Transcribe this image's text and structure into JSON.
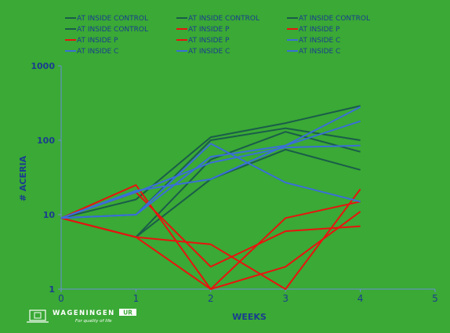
{
  "chart_data": {
    "type": "line",
    "title": "",
    "xlabel": "WEEKS",
    "ylabel": "# ACERIA",
    "yscale": "log",
    "xlim": [
      0,
      5
    ],
    "ylim": [
      1,
      1000
    ],
    "x_ticks": [
      "0",
      "1",
      "2",
      "3",
      "4",
      "5"
    ],
    "y_ticks": [
      "1",
      "10",
      "100",
      "1000"
    ],
    "grid": false,
    "legend_position": "top",
    "x": [
      0,
      1,
      2,
      3,
      4
    ],
    "series": [
      {
        "name": "AT INSIDE CONTROL",
        "color": "#1a5d4a",
        "values": [
          9,
          16,
          110,
          170,
          290
        ]
      },
      {
        "name": "AT INSIDE CONTROL",
        "color": "#1a5d4a",
        "values": [
          9,
          5,
          30,
          75,
          40
        ]
      },
      {
        "name": "AT INSIDE CONTROL",
        "color": "#1a5d4a",
        "values": [
          9,
          10,
          100,
          145,
          100
        ]
      },
      {
        "name": "AT INSIDE CONTROL",
        "color": "#1a5d4a",
        "values": [
          9,
          5,
          55,
          130,
          70
        ]
      },
      {
        "name": "AT INSIDE  P",
        "color": "#e8140f",
        "values": [
          9,
          25,
          1,
          9,
          15
        ]
      },
      {
        "name": "AT INSIDE  P",
        "color": "#e8140f",
        "values": [
          9,
          5,
          4,
          1,
          22
        ]
      },
      {
        "name": "AT INSIDE  P",
        "color": "#e8140f",
        "values": [
          9,
          5,
          1,
          2,
          11
        ]
      },
      {
        "name": "AT INSIDE  P",
        "color": "#e8140f",
        "values": [
          9,
          20,
          2,
          6,
          7
        ]
      },
      {
        "name": "AT INSIDE  C",
        "color": "#3a6fd8",
        "values": [
          9,
          10,
          90,
          27,
          15
        ]
      },
      {
        "name": "AT INSIDE  C",
        "color": "#3a6fd8",
        "values": [
          9,
          21,
          30,
          85,
          180
        ]
      },
      {
        "name": "AT INSIDE  C",
        "color": "#3a6fd8",
        "values": [
          9,
          10,
          60,
          85,
          280
        ]
      },
      {
        "name": "AT INSIDE  C",
        "color": "#3a6fd8",
        "values": [
          9,
          20,
          50,
          80,
          85
        ]
      }
    ]
  },
  "logo": {
    "brand": "WAGENINGEN",
    "badge": "UR",
    "tagline": "For quality of life"
  }
}
